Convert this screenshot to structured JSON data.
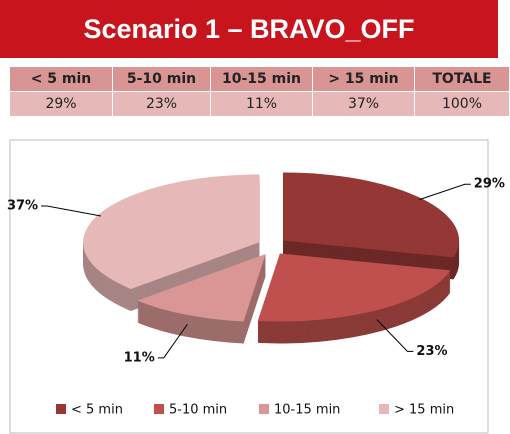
{
  "header": {
    "title": "Scenario 1 – BRAVO_OFF"
  },
  "table": {
    "headers": [
      "< 5 min",
      "5-10 min",
      "10-15 min",
      "> 15 min",
      "TOTALE"
    ],
    "rows": [
      [
        "29%",
        "23%",
        "11%",
        "37%",
        "100%"
      ]
    ]
  },
  "chart_data": {
    "type": "pie",
    "categories": [
      "< 5 min",
      "5-10 min",
      "10-15 min",
      "> 15 min"
    ],
    "values": [
      29,
      23,
      11,
      37
    ],
    "value_labels": [
      "29%",
      "23%",
      "11%",
      "37%"
    ],
    "colors": [
      "#953735",
      "#c0504d",
      "#d99694",
      "#e6b9b8"
    ],
    "legend": "bottom"
  }
}
